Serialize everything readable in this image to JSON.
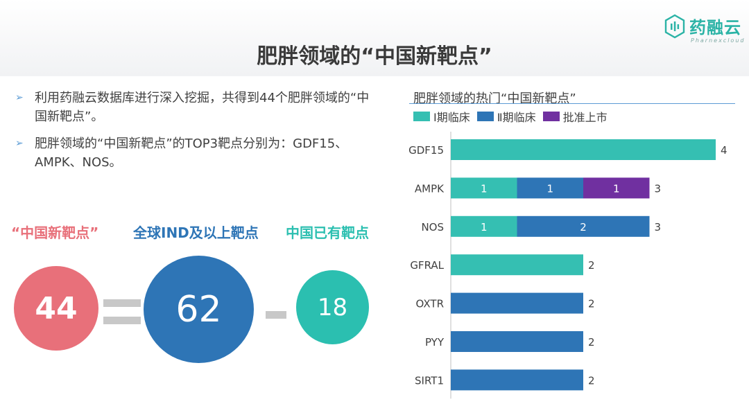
{
  "brand": {
    "name": "药融云",
    "sub": "Pharnexcloud"
  },
  "page_title": "肥胖领域的“中国新靶点”",
  "bullets": [
    "利用药融云数据库进行深入挖掘，共得到44个肥胖领域的“中国新靶点”。",
    "肥胖领域的“中国新靶点”的TOP3靶点分别为：GDF15、AMPK、NOS。"
  ],
  "equation": {
    "label1": "“中国新靶点”",
    "label2": "全球IND及以上靶点",
    "label3": "中国已有靶点",
    "value1": "44",
    "value2": "62",
    "value3": "18"
  },
  "colors": {
    "phase1": "#35bfb2",
    "phase2": "#2e75b6",
    "approved": "#7030a0",
    "pink": "#e8707a"
  },
  "chart_data": {
    "type": "bar",
    "orientation": "horizontal",
    "stacked": true,
    "title": "肥胖领域的热门“中国新靶点”",
    "legend_position": "top",
    "categories": [
      "GDF15",
      "AMPK",
      "NOS",
      "GFRAL",
      "OXTR",
      "PYY",
      "SIRT1"
    ],
    "series": [
      {
        "name": "Ⅰ期临床",
        "color": "#35bfb2",
        "values": [
          4,
          1,
          1,
          2,
          0,
          0,
          0
        ]
      },
      {
        "name": "Ⅱ期临床",
        "color": "#2e75b6",
        "values": [
          0,
          1,
          2,
          0,
          2,
          2,
          2
        ]
      },
      {
        "name": "批准上市",
        "color": "#7030a0",
        "values": [
          0,
          1,
          0,
          0,
          0,
          0,
          0
        ]
      }
    ],
    "totals": [
      4,
      3,
      3,
      2,
      2,
      2,
      2
    ],
    "segment_labels_shown_for": [
      "AMPK",
      "NOS"
    ],
    "xlim": [
      0,
      4
    ]
  }
}
